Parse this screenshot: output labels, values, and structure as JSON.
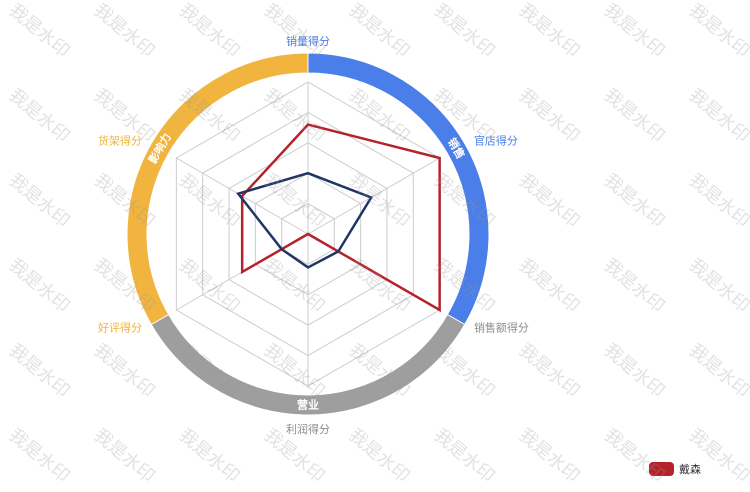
{
  "watermark": "我是水印",
  "chart_data": {
    "type": "radar",
    "indicators": [
      {
        "name": "销量得分",
        "color": "#4a7ee8",
        "max": 100
      },
      {
        "name": "官店得分",
        "color": "#4a7ee8",
        "max": 100
      },
      {
        "name": "销售额得分",
        "color": "#8c8c8c",
        "max": 100
      },
      {
        "name": "利润得分",
        "color": "#8c8c8c",
        "max": 100
      },
      {
        "name": "好评得分",
        "color": "#f0b43f",
        "max": 100
      },
      {
        "name": "货架得分",
        "color": "#f0b43f",
        "max": 100
      }
    ],
    "split_number": 5,
    "grid": true,
    "series": [
      {
        "name": "戴森",
        "color": "#b5232a",
        "values": [
          72,
          100,
          100,
          0,
          50,
          50
        ]
      },
      {
        "color": "#1f3564",
        "values": [
          40,
          48,
          23,
          22,
          20,
          53
        ]
      }
    ],
    "category_ring": [
      {
        "label": "销售",
        "color": "#4a7ee8"
      },
      {
        "label": "营业",
        "color": "#9e9e9e"
      },
      {
        "label": "影响力",
        "color": "#f0b43f"
      }
    ],
    "legend": {
      "position": "bottom-right",
      "entries": [
        "戴森"
      ]
    }
  }
}
